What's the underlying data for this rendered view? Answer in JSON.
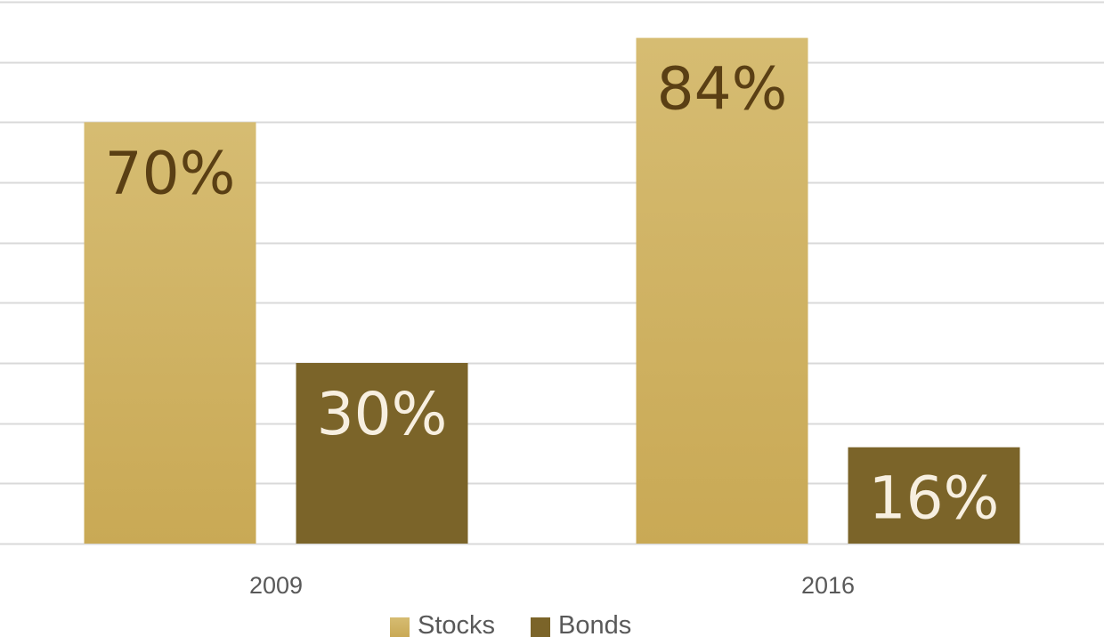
{
  "chart_data": {
    "type": "bar",
    "categories": [
      "2009",
      "2016"
    ],
    "series": [
      {
        "name": "Stocks",
        "values": [
          70,
          84
        ],
        "labels": [
          "70%",
          "84%"
        ]
      },
      {
        "name": "Bonds",
        "values": [
          30,
          16
        ],
        "labels": [
          "30%",
          "16%"
        ]
      }
    ],
    "ylim": [
      0,
      90
    ],
    "grid": true,
    "gridline_step": 10,
    "legend_position": "bottom",
    "colors": {
      "stocks_top": "#d6bc72",
      "stocks_bottom": "#c9a955",
      "bonds": "#7b6429",
      "stocks_label": "#5a3f14",
      "bonds_label": "#f7efe0",
      "gridline": "#d9d9d9"
    }
  }
}
